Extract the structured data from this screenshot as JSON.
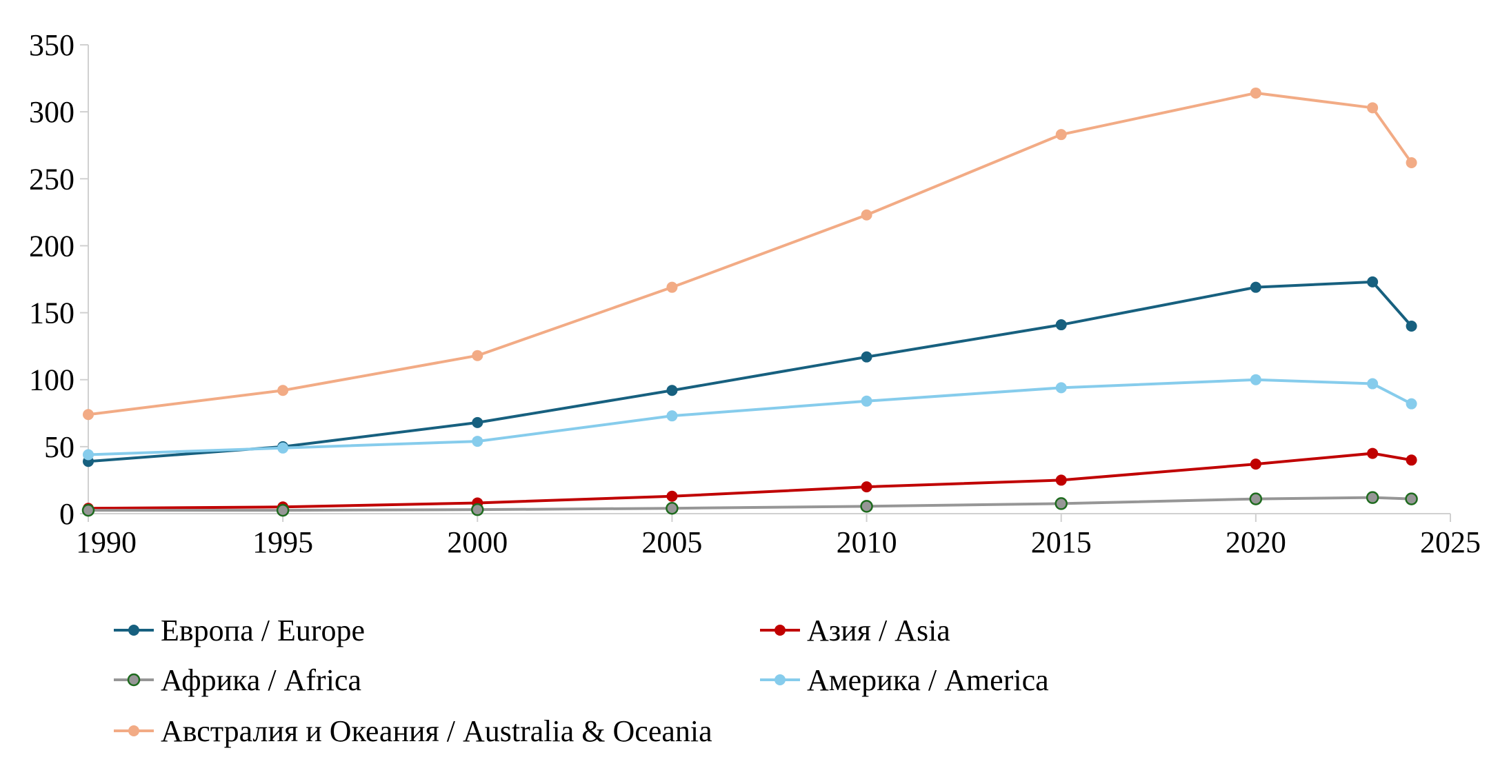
{
  "chart_data": {
    "type": "line",
    "title": "",
    "xlabel": "",
    "ylabel": "",
    "xlim": [
      1990,
      2025
    ],
    "ylim": [
      0,
      350
    ],
    "x_ticks": [
      "1990",
      "1995",
      "2000",
      "2005",
      "2010",
      "2015",
      "2020",
      "2025"
    ],
    "y_ticks": [
      "0",
      "50",
      "100",
      "150",
      "200",
      "250",
      "300",
      "350"
    ],
    "grid": false,
    "legend_placement": "bottom",
    "x": [
      1990,
      1995,
      2000,
      2005,
      2010,
      2015,
      2020,
      2023,
      2024
    ],
    "series": [
      {
        "name": "Европа / Europe",
        "color": "#17607f",
        "marker_edge": "#17607f",
        "values": [
          39,
          50,
          68,
          92,
          117,
          141,
          169,
          173,
          140
        ]
      },
      {
        "name": "Азия / Asia",
        "color": "#c00000",
        "marker_edge": "#c00000",
        "values": [
          4,
          5,
          8,
          13,
          20,
          25,
          37,
          45,
          40
        ]
      },
      {
        "name": "Африка / Africa",
        "color": "#969696",
        "marker_edge": "#1e6b1e",
        "values": [
          2.5,
          2.5,
          3,
          4,
          5.5,
          7.5,
          11,
          12,
          11
        ]
      },
      {
        "name": "Америка / America",
        "color": "#86ccec",
        "marker_edge": "#86ccec",
        "values": [
          44,
          49,
          54,
          73,
          84,
          94,
          100,
          97,
          82
        ]
      },
      {
        "name": "Австралия и Океания / Australia & Oceania",
        "color": "#f2ab85",
        "marker_edge": "#f2ab85",
        "values": [
          74,
          92,
          118,
          169,
          223,
          283,
          314,
          303,
          262
        ]
      }
    ]
  }
}
